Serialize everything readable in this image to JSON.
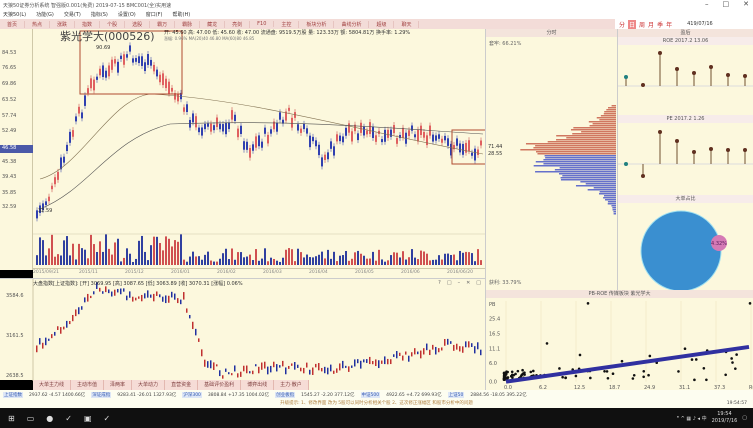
{
  "window": {
    "title": "天狼50证券分析系统 智强版0.001(免费) 2019-07-15 BMC001(全)实用速",
    "controls": [
      "–",
      "□",
      "✕"
    ]
  },
  "menu": [
    "天狼50(L)",
    "功能(G)",
    "交易(T)",
    "指标(S)",
    "设置(O)",
    "窗口(F)",
    "帮助(H)"
  ],
  "toolbar": [
    "首页",
    "热点",
    "涨跌",
    "指数",
    "个股",
    "选股",
    "霸万",
    "霸脉",
    "藏龙",
    "亮剑",
    "F10",
    "主控",
    "板块分析",
    "曲线分析",
    "超级",
    "聊天"
  ],
  "period": {
    "items": [
      "分",
      "日",
      "周",
      "月",
      "季",
      "年"
    ],
    "selected": "日",
    "date": "419/07/16"
  },
  "stock": {
    "name": "紫光学大",
    "code": "(000526)",
    "info": "开: 45.60 高: 47.00 低: 45.60 收: 47.00 流通盘: 9519.5万股 量: 123.33万 额: 5804.81万 换手率: 1.29%",
    "info2": "涨幅: 0.96% MA(20)40 46.80 MA(60)80 46.85"
  },
  "price_axis": [
    "84.53",
    "76.65",
    "69.86",
    "63.52",
    "57.74",
    "52.49",
    "45.38",
    "39.43",
    "35.85",
    "32.59"
  ],
  "current_price": "46.58",
  "annotations": {
    "high": "90.69",
    "low": "32.59",
    "dist_a": "71.44",
    "dist_b": "28.55"
  },
  "date_axis": [
    "2015/09/21",
    "2015/11",
    "2015/12",
    "2016/01",
    "2016/02",
    "2016/03",
    "2016/04",
    "2016/05",
    "2016/06",
    "2016/06/20"
  ],
  "distribution": {
    "title": "分时",
    "top": "套牢: 66.21%",
    "bottom": "获利: 33.79%"
  },
  "right": {
    "header": "盈后",
    "roe_title": "ROE 2017.2 13.06",
    "pe_title": "PE 2017.2 1.26",
    "pie_title": "大单占比",
    "pie_label": "4.32%",
    "colors": {
      "pie": "#3a8fd0",
      "pie_small": "#d57ab5"
    }
  },
  "index": {
    "title": "大盘指数[上证指数]: [开] 3069.95 [高] 3087.65 [低] 3063.89 [收] 3070.31 [涨幅] 0.06%",
    "axis": [
      "3584.6",
      "3161.5",
      "2638.5"
    ],
    "controls": [
      "?",
      "□",
      "–",
      "✕",
      "□"
    ]
  },
  "lower_tabs": [
    "大单主力线",
    "主动市值",
    "泽两率",
    "大单动力",
    "直营资金",
    "基础评价盈利",
    "博弈出线",
    "主力·散户"
  ],
  "scatter": {
    "title": "PB-ROE 传媒板块 紫光学大",
    "y_ticks": [
      "PB",
      "25.4",
      "16.5",
      "11.1",
      "6.0",
      "0.0"
    ],
    "x_ticks": [
      "0.0",
      "6.2",
      "12.5",
      "18.7",
      "24.9",
      "31.1",
      "37.3",
      "ROE"
    ]
  },
  "ticker": [
    {
      "n": "上证指数",
      "v": "2937.62 -4.57 1400.66亿"
    },
    {
      "n": "深证成指",
      "v": "9283.41 -26.01 1327.93亿"
    },
    {
      "n": "沪深300",
      "v": "3808.84 +17.35 1004.02亿"
    },
    {
      "n": "创业板指",
      "v": "1545.27 -2.20 377.12亿"
    },
    {
      "n": "中证500",
      "v": "4922.65 +4.72 699.93亿"
    },
    {
      "n": "上证50",
      "v": "2884.56 -18.05 395.22亿"
    }
  ],
  "status": "升级提示: 1、修改界面 改为 5股可以同时分析相关个股   2、这次修正涨幅区 和股市分析中的问题",
  "status_time": "19:54:57",
  "taskbar": {
    "time": "19:54",
    "date": "2019/7/16"
  }
}
